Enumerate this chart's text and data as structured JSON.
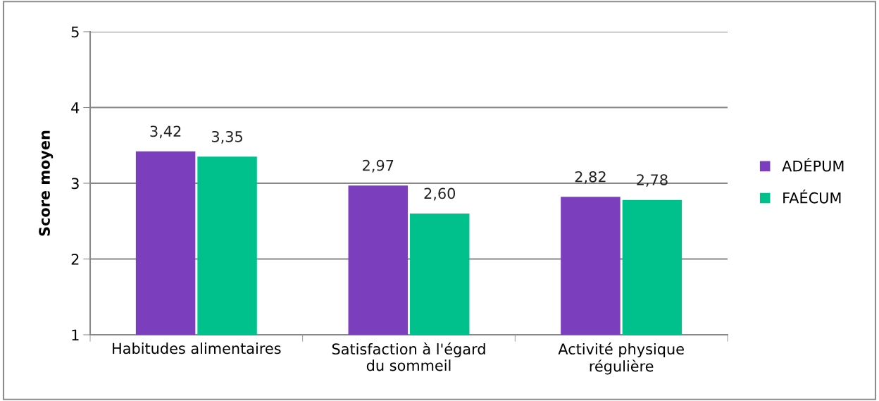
{
  "chart_data": {
    "type": "bar",
    "ylabel": "Score moyen",
    "categories": [
      "Habitudes alimentaires",
      "Satisfaction à l'égard\ndu sommeil",
      "Activité physique\nrégulière"
    ],
    "series": [
      {
        "name": "ADÉPUM",
        "color": "#7b3fbe",
        "values": [
          3.42,
          2.97,
          2.82
        ],
        "value_labels": [
          "3,42",
          "2,97",
          "2,82"
        ]
      },
      {
        "name": "FAÉCUM",
        "color": "#00c18c",
        "values": [
          3.35,
          2.6,
          2.78
        ],
        "value_labels": [
          "3,35",
          "2,60",
          "2,78"
        ]
      }
    ],
    "ylim": [
      1,
      5
    ],
    "yticks": [
      1,
      2,
      3,
      4,
      5
    ],
    "grid": "y",
    "legend": "right"
  }
}
